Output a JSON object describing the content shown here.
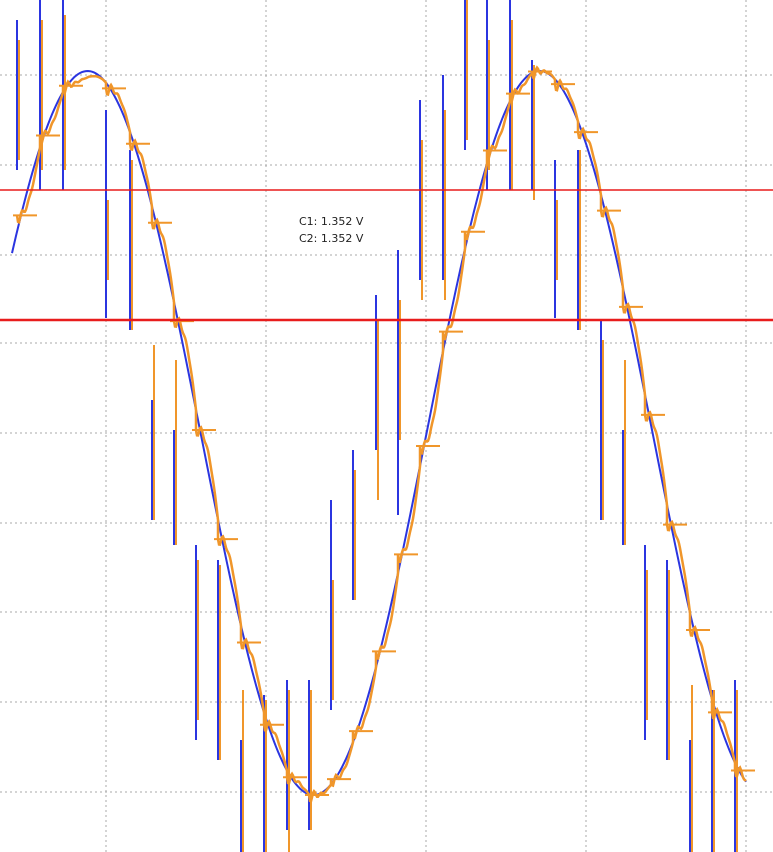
{
  "chart_data": {
    "type": "line",
    "title": "",
    "xlabel": "",
    "ylabel": "",
    "grid": true,
    "grid_divisions": {
      "x": 8,
      "y": 9
    },
    "colors": {
      "trace_blue": "#2b35e0",
      "trace_orange": "#f0962a",
      "cursor": "#e81c1c",
      "grid": "#a8a8a8"
    },
    "cursors": [
      {
        "name": "C1",
        "value": 1.352,
        "unit": "V",
        "label": "C1: 1.352 V"
      },
      {
        "name": "C2",
        "value": 1.352,
        "unit": "V",
        "label": "C2: 1.352 V"
      }
    ],
    "series": [
      {
        "color_name": "blue",
        "shape": "stepped sine with glitch spikes",
        "cycles": 1.75
      },
      {
        "color_name": "orange",
        "shape": "stepped sine with ringing and glitch spikes",
        "cycles": 1.75
      }
    ]
  }
}
